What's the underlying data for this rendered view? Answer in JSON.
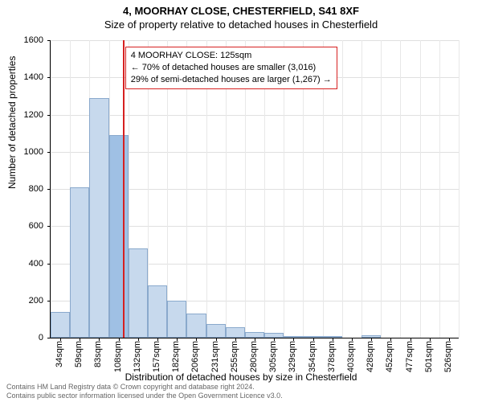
{
  "title": {
    "line1": "4, MOORHAY CLOSE, CHESTERFIELD, S41 8XF",
    "line2": "Size of property relative to detached houses in Chesterfield",
    "fontsize": 13
  },
  "chart": {
    "type": "histogram",
    "y_axis_title": "Number of detached properties",
    "x_axis_title": "Distribution of detached houses by size in Chesterfield",
    "ylim": [
      0,
      1600
    ],
    "ytick_step": 200,
    "yticks": [
      0,
      200,
      400,
      600,
      800,
      1000,
      1200,
      1400,
      1600
    ],
    "bar_color": "#c7d9ed",
    "bar_border_color": "#8aa9cc",
    "highlight_bar_color": "#9fc0e4",
    "grid_color": "#e0e0e0",
    "background_color": "#ffffff",
    "reference_line_color": "#d62020",
    "reference_x_value": 125,
    "categories": [
      "34sqm",
      "59sqm",
      "83sqm",
      "108sqm",
      "132sqm",
      "157sqm",
      "182sqm",
      "206sqm",
      "231sqm",
      "255sqm",
      "280sqm",
      "305sqm",
      "329sqm",
      "354sqm",
      "378sqm",
      "403sqm",
      "428sqm",
      "452sqm",
      "477sqm",
      "501sqm",
      "526sqm"
    ],
    "values": [
      140,
      810,
      1290,
      1090,
      480,
      280,
      200,
      130,
      75,
      55,
      30,
      25,
      10,
      10,
      8,
      0,
      12,
      0,
      0,
      0,
      0
    ],
    "highlight_index": 3,
    "label_fontsize": 11
  },
  "callout": {
    "line1": "4 MOORHAY CLOSE: 125sqm",
    "line2": "← 70% of detached houses are smaller (3,016)",
    "line3": "29% of semi-detached houses are larger (1,267) →"
  },
  "footer": {
    "line1": "Contains HM Land Registry data © Crown copyright and database right 2024.",
    "line2": "Contains public sector information licensed under the Open Government Licence v3.0."
  }
}
